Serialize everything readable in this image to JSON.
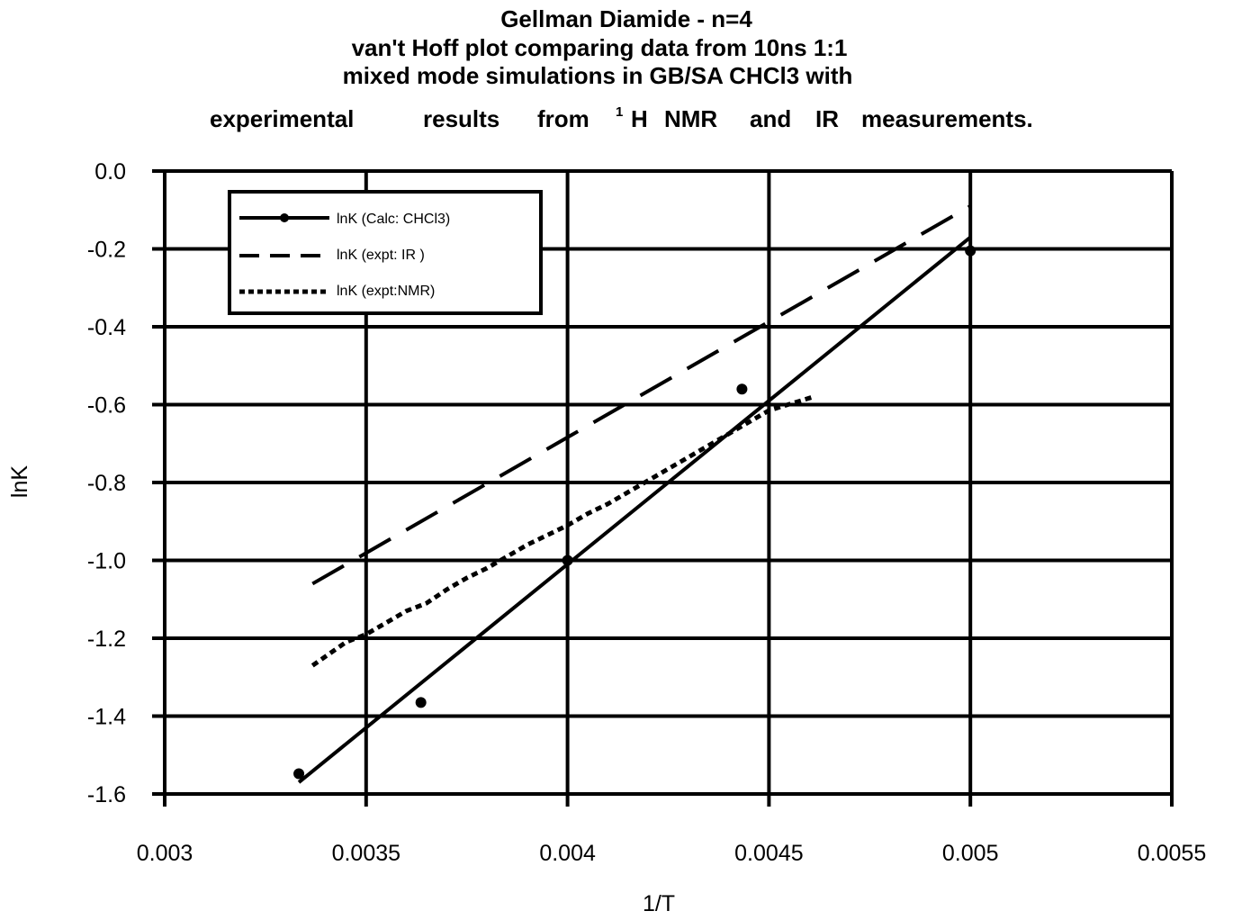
{
  "chart_data": {
    "type": "line",
    "title": [
      "Gellman Diamide - n=4",
      "van't Hoff plot comparing data from 10ns 1:1",
      "mixed mode simulations in GB/SA CHCl3 with"
    ],
    "title_last": {
      "words": [
        "experimental",
        "results",
        "from"
      ],
      "superscript": "1",
      "rest": [
        "H",
        "NMR",
        "and",
        "IR",
        "measurements."
      ]
    },
    "xlabel": "1/T",
    "ylabel": "lnK",
    "xlim": [
      0.003,
      0.0055
    ],
    "ylim": [
      -1.6,
      0.0
    ],
    "x_ticks": [
      "0.003",
      "0.0035",
      "0.004",
      "0.0045",
      "0.005",
      "0.0055"
    ],
    "y_ticks": [
      "0.0",
      "-0.2",
      "-0.4",
      "-0.6",
      "-0.8",
      "-1.0",
      "-1.2",
      "-1.4",
      "-1.6"
    ],
    "x_tick_values": [
      0.003,
      0.0035,
      0.004,
      0.0045,
      0.005,
      0.0055
    ],
    "y_tick_values": [
      0.0,
      -0.2,
      -0.4,
      -0.6,
      -0.8,
      -1.0,
      -1.2,
      -1.4,
      -1.6
    ],
    "grid": true,
    "legend_position": "top-left",
    "series": [
      {
        "name": "lnK (Calc: CHCl3)",
        "style": "solid",
        "color": "#000000",
        "points": [
          [
            0.003333,
            -1.548
          ],
          [
            0.003636,
            -1.365
          ],
          [
            0.004,
            -1.0
          ],
          [
            0.004433,
            -0.56
          ],
          [
            0.005,
            -0.205
          ]
        ],
        "fit_line": [
          [
            0.003333,
            -1.57
          ],
          [
            0.005,
            -0.17
          ]
        ]
      },
      {
        "name": "lnK (expt: IR )",
        "style": "dash",
        "color": "#000000",
        "line": [
          [
            0.003367,
            -1.06
          ],
          [
            0.005,
            -0.09
          ]
        ]
      },
      {
        "name": "lnK (expt:NMR)",
        "style": "dot",
        "color": "#000000",
        "line": [
          [
            0.003367,
            -1.27
          ],
          [
            0.00345,
            -1.21
          ],
          [
            0.0035,
            -1.19
          ],
          [
            0.00355,
            -1.16
          ],
          [
            0.0036,
            -1.13
          ],
          [
            0.00365,
            -1.11
          ],
          [
            0.0037,
            -1.075
          ],
          [
            0.00375,
            -1.045
          ],
          [
            0.0038,
            -1.02
          ],
          [
            0.00385,
            -0.99
          ],
          [
            0.0039,
            -0.96
          ],
          [
            0.00395,
            -0.935
          ],
          [
            0.004,
            -0.91
          ],
          [
            0.00405,
            -0.88
          ],
          [
            0.0041,
            -0.855
          ],
          [
            0.00415,
            -0.825
          ],
          [
            0.0042,
            -0.795
          ],
          [
            0.00425,
            -0.765
          ],
          [
            0.0043,
            -0.735
          ],
          [
            0.00435,
            -0.705
          ],
          [
            0.0044,
            -0.675
          ],
          [
            0.00445,
            -0.645
          ],
          [
            0.0045,
            -0.615
          ],
          [
            0.00461,
            -0.58
          ]
        ]
      }
    ]
  }
}
